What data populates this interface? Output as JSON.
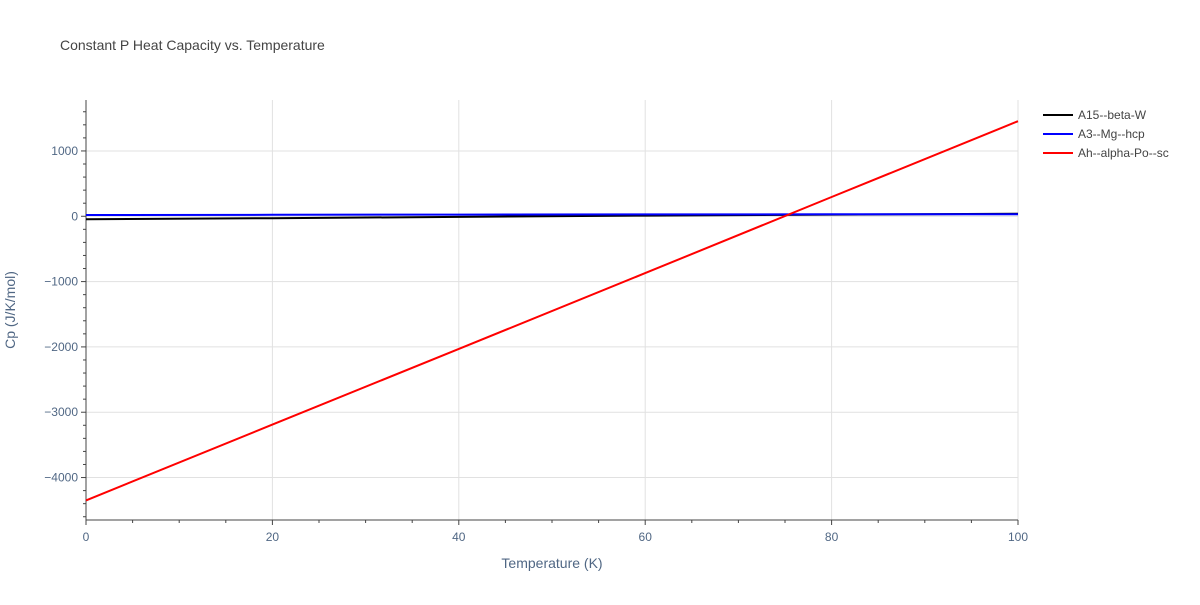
{
  "chart_data": {
    "type": "line",
    "title": "Constant P Heat Capacity vs. Temperature",
    "xlabel": "Temperature (K)",
    "ylabel": "Cp (J/K/mol)",
    "xlim": [
      0,
      100
    ],
    "ylim": [
      -4650,
      1780
    ],
    "x_ticks": [
      0,
      20,
      40,
      60,
      80,
      100
    ],
    "x_tick_labels": [
      "0",
      "20",
      "40",
      "60",
      "80",
      "100"
    ],
    "y_ticks": [
      1000,
      0,
      -1000,
      -2000,
      -3000,
      -4000
    ],
    "y_tick_labels": [
      "1000",
      "0",
      "−1000",
      "−2000",
      "−3000",
      "−4000"
    ],
    "grid": true,
    "legend_position": "top-right",
    "series": [
      {
        "name": "A15--beta-W",
        "color": "#000000",
        "x": [
          0,
          20,
          40,
          60,
          80,
          100
        ],
        "y": [
          -45,
          -30,
          -10,
          10,
          25,
          40
        ]
      },
      {
        "name": "A3--Mg--hcp",
        "color": "#0000ff",
        "x": [
          0,
          20,
          40,
          60,
          80,
          100
        ],
        "y": [
          20,
          22,
          25,
          28,
          30,
          32
        ]
      },
      {
        "name": "Ah--alpha-Po--sc",
        "color": "#ff0000",
        "x": [
          0,
          20,
          40,
          60,
          80,
          100
        ],
        "y": [
          -4350,
          -3190,
          -2030,
          -870,
          295,
          1455
        ]
      }
    ]
  }
}
